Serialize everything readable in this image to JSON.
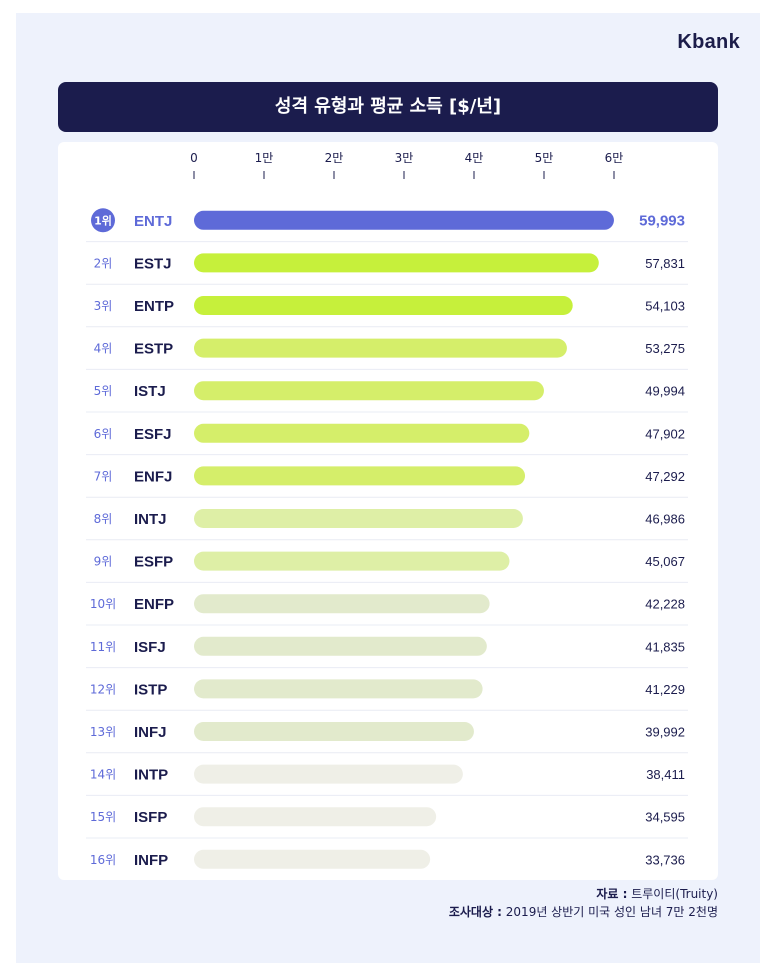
{
  "brand": "Kbank",
  "chart_data": {
    "type": "bar",
    "title": "성격 유형과 평균 소득 [$/년]",
    "x_ticks": [
      "0",
      "1만",
      "2만",
      "3만",
      "4만",
      "5만",
      "6만"
    ],
    "xlim": [
      0,
      60000
    ],
    "ranks": [
      "1위",
      "2위",
      "3위",
      "4위",
      "5위",
      "6위",
      "7위",
      "8위",
      "9위",
      "10위",
      "11위",
      "12위",
      "13위",
      "14위",
      "15위",
      "16위"
    ],
    "categories": [
      "ENTJ",
      "ESTJ",
      "ENTP",
      "ESTP",
      "ISTJ",
      "ESFJ",
      "ENFJ",
      "INTJ",
      "ESFP",
      "ENFP",
      "ISFJ",
      "ISTP",
      "INFJ",
      "INTP",
      "ISFP",
      "INFP"
    ],
    "values": [
      59993,
      57831,
      54103,
      53275,
      49994,
      47902,
      47292,
      46986,
      45067,
      42228,
      41835,
      41229,
      39992,
      38411,
      34595,
      33736
    ],
    "value_labels": [
      "59,993",
      "57,831",
      "54,103",
      "53,275",
      "49,994",
      "47,902",
      "47,292",
      "46,986",
      "45,067",
      "42,228",
      "41,835",
      "41,229",
      "39,992",
      "38,411",
      "34,595",
      "33,736"
    ],
    "colors": [
      "#5e6ad8",
      "#c6f03b",
      "#c6f03b",
      "#d5ee6a",
      "#d5ee6a",
      "#d5ee6a",
      "#d5ee6a",
      "#deefa6",
      "#deefa6",
      "#e2eacc",
      "#e2eacc",
      "#e2eacc",
      "#e2eacc",
      "#efefe7",
      "#efefe7",
      "#efefe7"
    ],
    "grid": false
  },
  "source": {
    "label": "자료 :",
    "text": " 트루이티(Truity)",
    "survey_label": "조사대상 :",
    "survey_text": " 2019년 상반기 미국 성인 남녀 7만 2천명"
  }
}
